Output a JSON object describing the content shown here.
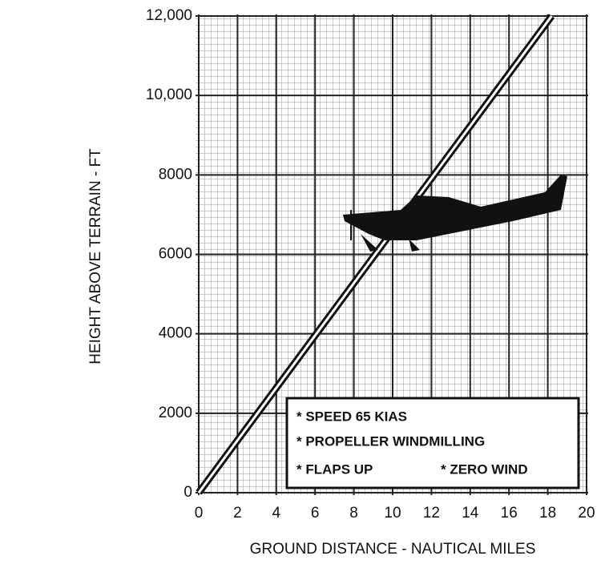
{
  "chart_data": {
    "type": "line",
    "x_label": "GROUND DISTANCE - NAUTICAL MILES",
    "y_label": "HEIGHT ABOVE TERRAIN - FT",
    "x": [
      0,
      18.2
    ],
    "values": [
      0,
      12000
    ],
    "color": "#111111",
    "xlim": [
      0,
      20
    ],
    "xticks": [
      0,
      2,
      4,
      6,
      8,
      10,
      12,
      14,
      16,
      18,
      20
    ],
    "ylim": [
      0,
      12000
    ],
    "yticks": [
      0,
      2000,
      4000,
      6000,
      8000,
      {
        "value": 10000,
        "label": "10,000"
      },
      {
        "value": 12000,
        "label": "12,000"
      }
    ],
    "grid": true,
    "notes": [
      "* SPEED 65 KIAS",
      "* PROPELLER WINDMILLING",
      "* FLAPS UP",
      "* ZERO WIND"
    ]
  }
}
